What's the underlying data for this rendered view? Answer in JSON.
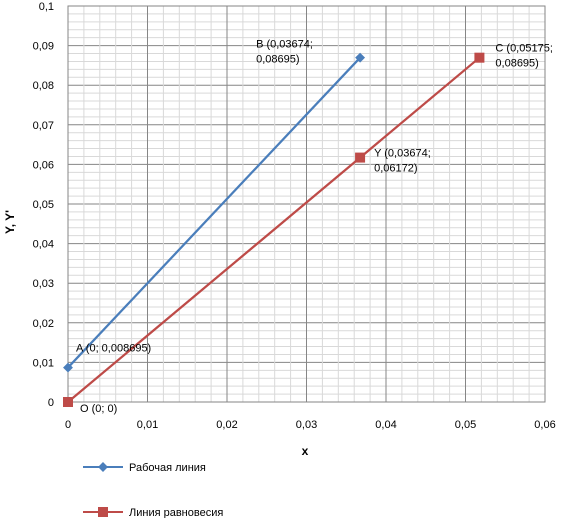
{
  "chart_data": {
    "type": "line",
    "xlabel": "x",
    "ylabel": "Y, Y'",
    "xlim": [
      0,
      0.06
    ],
    "ylim": [
      0,
      0.1
    ],
    "x_ticks": [
      0,
      0.01,
      0.02,
      0.03,
      0.04,
      0.05,
      0.06
    ],
    "x_tick_labels": [
      "0",
      "0,01",
      "0,02",
      "0,03",
      "0,04",
      "0,05",
      "0,06"
    ],
    "y_ticks": [
      0,
      0.01,
      0.02,
      0.03,
      0.04,
      0.05,
      0.06,
      0.07,
      0.08,
      0.09,
      0.1
    ],
    "y_tick_labels": [
      "0",
      "0,01",
      "0,02",
      "0,03",
      "0,04",
      "0,05",
      "0,06",
      "0,07",
      "0,08",
      "0,09",
      "0,1"
    ],
    "grid": "major and minor",
    "legend_position": "bottom-left",
    "series": [
      {
        "name": "Рабочая линия",
        "color": "#4a7ebb",
        "marker": "diamond",
        "points": [
          {
            "x": 0,
            "y": 0.008695,
            "label_lines": [
              "A (0; 0,008695)"
            ]
          },
          {
            "x": 0.03674,
            "y": 0.08695,
            "label_lines": [
              "B (0,03674;",
              "0,08695)"
            ]
          }
        ]
      },
      {
        "name": "Линия равновесия",
        "color": "#be4b48",
        "marker": "square",
        "points": [
          {
            "x": 0,
            "y": 0,
            "label_lines": [
              "O (0; 0)"
            ]
          },
          {
            "x": 0.03674,
            "y": 0.06172,
            "label_lines": [
              "Y (0,03674;",
              "0,06172)"
            ]
          },
          {
            "x": 0.05175,
            "y": 0.08695,
            "label_lines": [
              "C (0,05175;",
              "0,08695)"
            ]
          }
        ]
      }
    ]
  }
}
